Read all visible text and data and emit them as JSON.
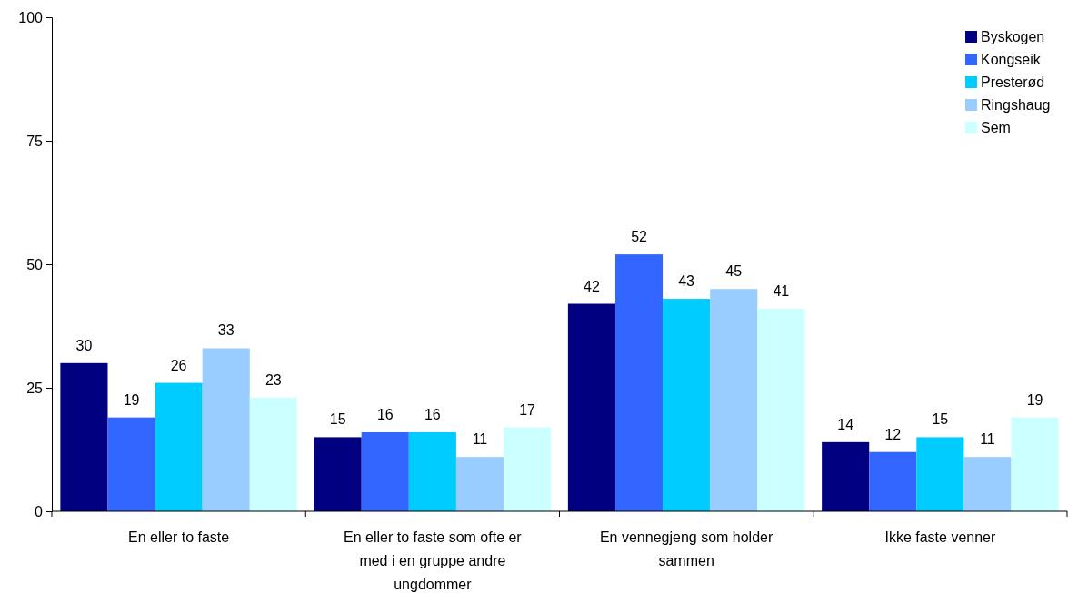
{
  "chart_data": {
    "type": "bar",
    "categories": [
      "En eller to faste",
      "En eller to faste som ofte er med i en gruppe andre ungdommer",
      "En vennegjeng som holder sammen",
      "Ikke faste venner"
    ],
    "series": [
      {
        "name": "Byskogen",
        "color": "#000080",
        "values": [
          30,
          15,
          42,
          14
        ]
      },
      {
        "name": "Kongseik",
        "color": "#3366ff",
        "values": [
          19,
          16,
          52,
          12
        ]
      },
      {
        "name": "Presterød",
        "color": "#00ccff",
        "values": [
          26,
          16,
          43,
          15
        ]
      },
      {
        "name": "Ringshaug",
        "color": "#99ccff",
        "values": [
          33,
          11,
          45,
          11
        ]
      },
      {
        "name": "Sem",
        "color": "#ccffff",
        "values": [
          23,
          17,
          41,
          19
        ]
      }
    ],
    "ylim": [
      0,
      100
    ],
    "yticks": [
      0,
      25,
      50,
      75,
      100
    ],
    "data_labels": true,
    "legend": "top right",
    "grid": false
  }
}
